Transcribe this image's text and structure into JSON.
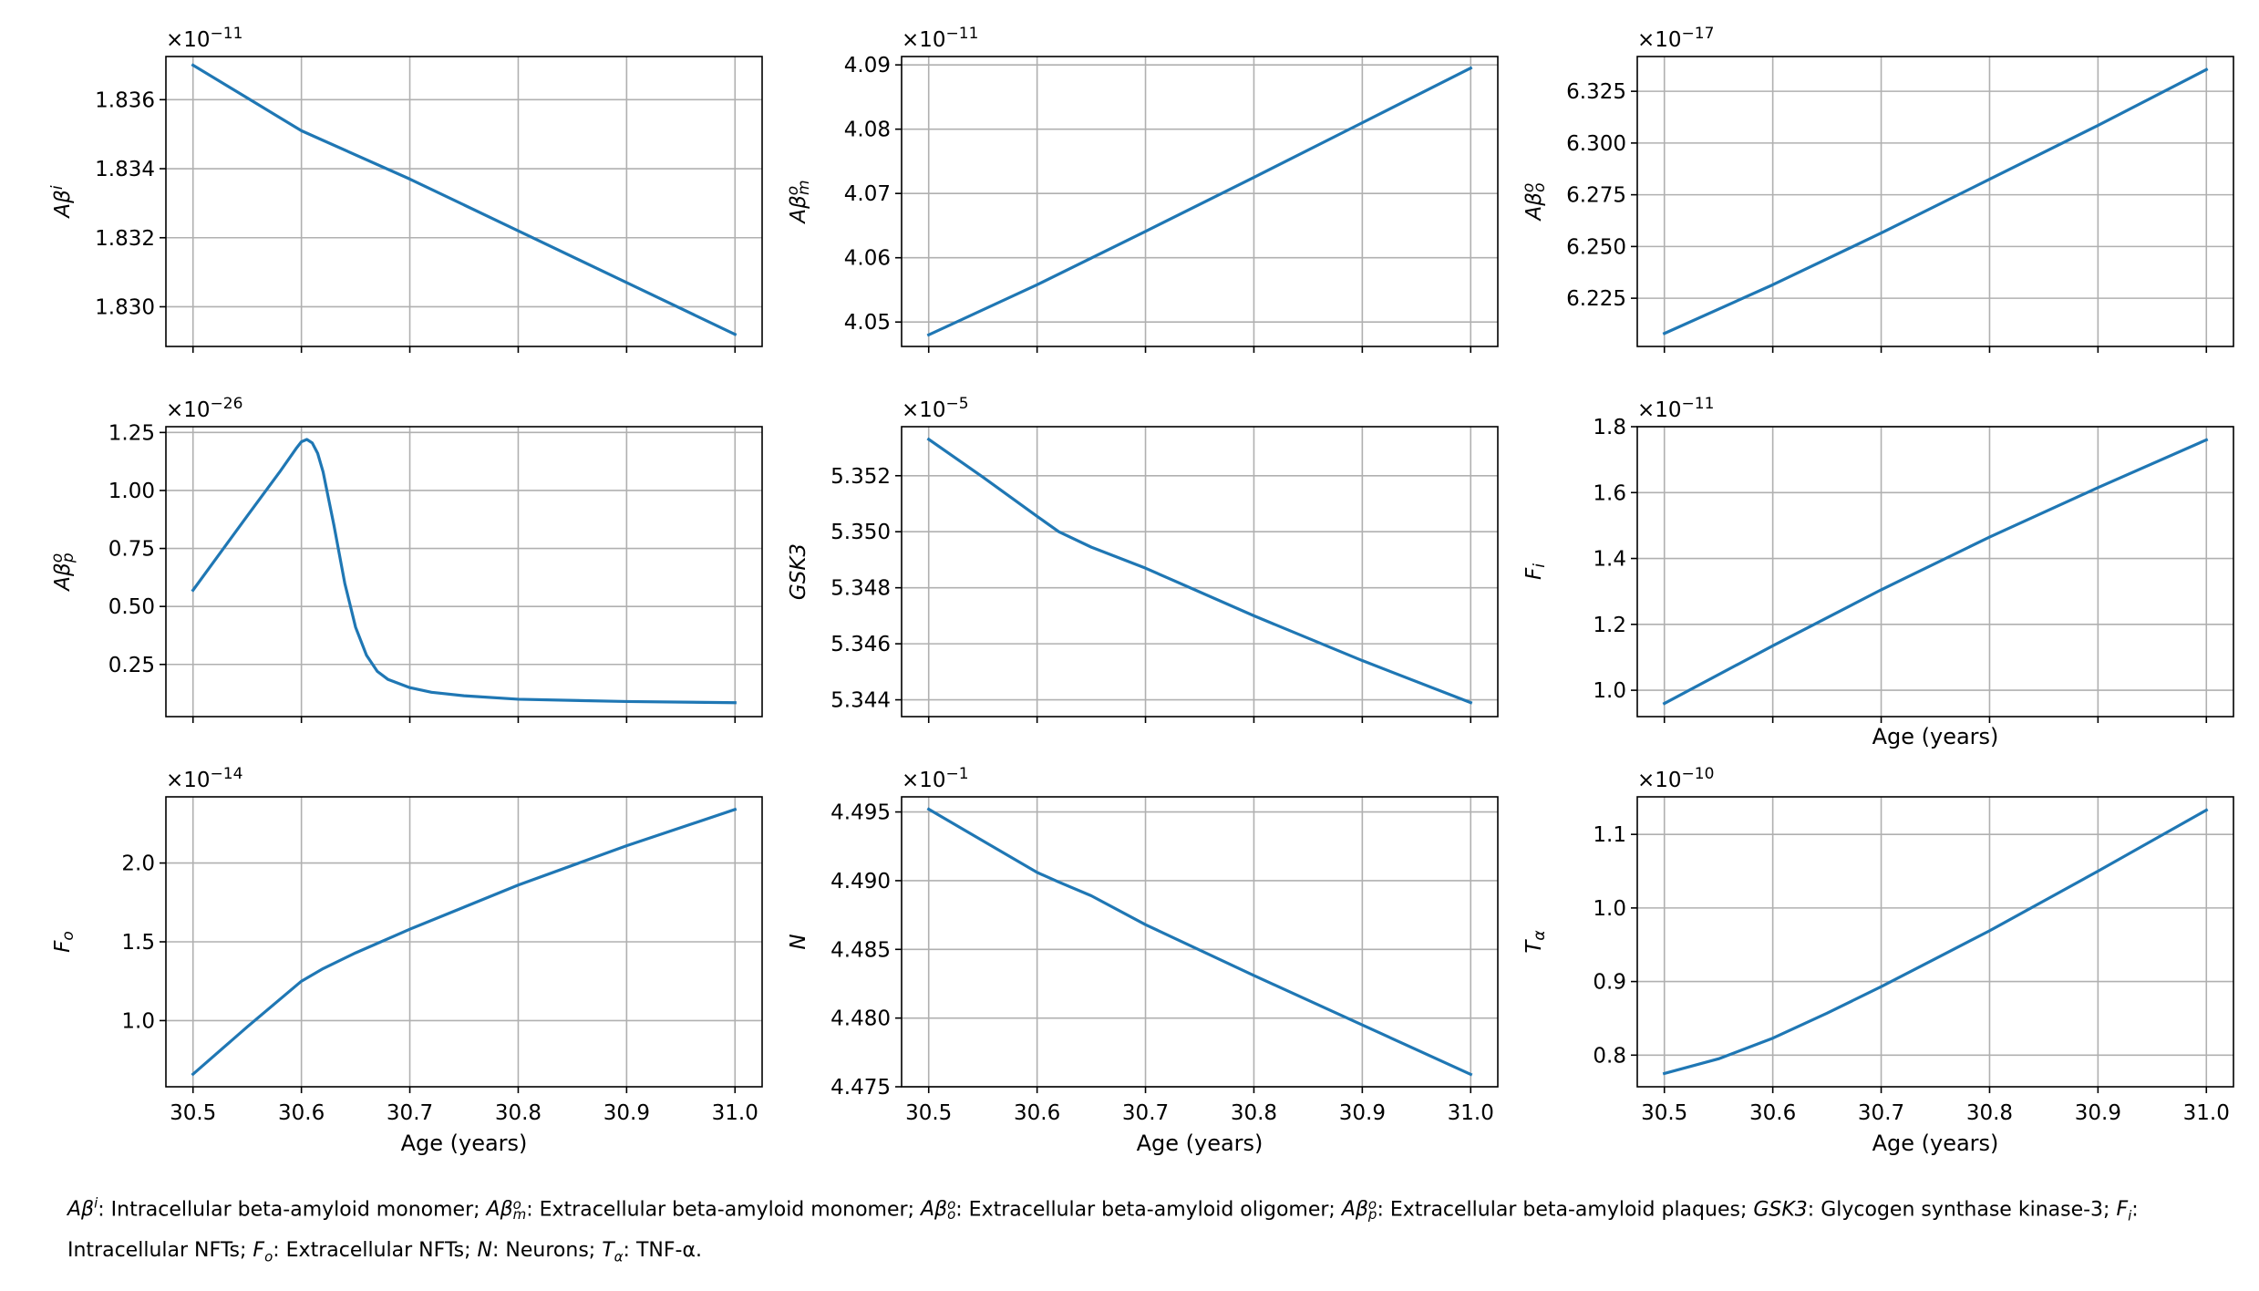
{
  "chart_data": [
    {
      "type": "line",
      "ylabel_tex": "Aβ^i",
      "multiplier_exp": "-11",
      "x": [
        30.5,
        30.55,
        30.6,
        30.62,
        30.7,
        30.8,
        30.9,
        31.0
      ],
      "y": [
        1.837,
        1.83605,
        1.8351,
        1.83482,
        1.8337,
        1.8322,
        1.8307,
        1.8292
      ],
      "xlim": [
        30.475,
        31.025
      ],
      "ylim": [
        1.82885,
        1.83725
      ],
      "yticks": [
        "1.830",
        "1.832",
        "1.834",
        "1.836"
      ],
      "xticklabels": false,
      "xlabel": "",
      "grid": true,
      "color": "#1f77b4"
    },
    {
      "type": "line",
      "ylabel_tex": "Aβ^o_m",
      "multiplier_exp": "-11",
      "x": [
        30.5,
        30.6,
        30.7,
        30.8,
        30.9,
        31.0
      ],
      "y": [
        4.048,
        4.0558,
        4.0641,
        4.0725,
        4.081,
        4.0895
      ],
      "xlim": [
        30.475,
        31.025
      ],
      "ylim": [
        4.0462,
        4.0913
      ],
      "yticks": [
        "4.05",
        "4.06",
        "4.07",
        "4.08",
        "4.09"
      ],
      "xticklabels": false,
      "xlabel": "",
      "grid": true,
      "color": "#1f77b4"
    },
    {
      "type": "line",
      "ylabel_tex": "Aβ^o_o",
      "multiplier_exp": "-17",
      "x": [
        30.5,
        30.6,
        30.7,
        30.8,
        30.9,
        31.0
      ],
      "y": [
        6.208,
        6.2315,
        6.2565,
        6.2825,
        6.3085,
        6.3355
      ],
      "xlim": [
        30.475,
        31.025
      ],
      "ylim": [
        6.2017,
        6.3418
      ],
      "yticks": [
        "6.225",
        "6.250",
        "6.275",
        "6.300",
        "6.325"
      ],
      "xticklabels": false,
      "xlabel": "",
      "grid": true,
      "color": "#1f77b4"
    },
    {
      "type": "line",
      "ylabel_tex": "Aβ^o_p",
      "multiplier_exp": "-26",
      "x": [
        30.5,
        30.55,
        30.58,
        30.595,
        30.6,
        30.605,
        30.61,
        30.615,
        30.62,
        30.63,
        30.64,
        30.65,
        30.66,
        30.67,
        30.68,
        30.7,
        30.72,
        30.75,
        30.8,
        30.9,
        31.0
      ],
      "y": [
        0.57,
        0.89,
        1.08,
        1.18,
        1.21,
        1.22,
        1.205,
        1.16,
        1.08,
        0.85,
        0.6,
        0.41,
        0.29,
        0.22,
        0.185,
        0.15,
        0.13,
        0.115,
        0.1,
        0.09,
        0.085
      ],
      "xlim": [
        30.475,
        31.025
      ],
      "ylim": [
        0.025,
        1.275
      ],
      "yticks": [
        "0.25",
        "0.50",
        "0.75",
        "1.00",
        "1.25"
      ],
      "xticklabels": false,
      "xlabel": "",
      "grid": true,
      "color": "#1f77b4"
    },
    {
      "type": "line",
      "ylabel_tex": "GSK3",
      "multiplier_exp": "-5",
      "x": [
        30.5,
        30.55,
        30.6,
        30.62,
        30.65,
        30.7,
        30.8,
        30.9,
        31.0
      ],
      "y": [
        5.3533,
        5.35195,
        5.35055,
        5.35,
        5.34945,
        5.3487,
        5.347,
        5.3454,
        5.3439
      ],
      "xlim": [
        30.475,
        31.025
      ],
      "ylim": [
        5.3434,
        5.35375
      ],
      "yticks": [
        "5.344",
        "5.346",
        "5.348",
        "5.350",
        "5.352"
      ],
      "xticklabels": false,
      "xlabel": "",
      "grid": true,
      "color": "#1f77b4"
    },
    {
      "type": "line",
      "ylabel_tex": "F_i",
      "multiplier_exp": "-11",
      "x": [
        30.5,
        30.6,
        30.7,
        30.8,
        30.9,
        31.0
      ],
      "y": [
        0.96,
        1.135,
        1.305,
        1.465,
        1.615,
        1.76
      ],
      "xlim": [
        30.475,
        31.025
      ],
      "ylim": [
        0.92,
        1.8
      ],
      "yticks": [
        "1.0",
        "1.2",
        "1.4",
        "1.6",
        "1.8"
      ],
      "xticklabels": false,
      "xlabel": "Age (years)",
      "grid": true,
      "color": "#1f77b4"
    },
    {
      "type": "line",
      "ylabel_tex": "F_o",
      "multiplier_exp": "-14",
      "x": [
        30.5,
        30.55,
        30.6,
        30.62,
        30.65,
        30.7,
        30.8,
        30.9,
        31.0
      ],
      "y": [
        0.66,
        0.96,
        1.25,
        1.33,
        1.43,
        1.58,
        1.86,
        2.11,
        2.34
      ],
      "xlim": [
        30.475,
        31.025
      ],
      "ylim": [
        0.58,
        2.42
      ],
      "yticks": [
        "1.0",
        "1.5",
        "2.0"
      ],
      "xticklabels": true,
      "xlabel": "Age (years)",
      "grid": true,
      "color": "#1f77b4"
    },
    {
      "type": "line",
      "ylabel_tex": "N",
      "multiplier_exp": "-1",
      "x": [
        30.5,
        30.55,
        30.6,
        30.62,
        30.65,
        30.7,
        30.8,
        30.9,
        31.0
      ],
      "y": [
        4.4952,
        4.4929,
        4.4906,
        4.4899,
        4.4889,
        4.4868,
        4.4831,
        4.4795,
        4.4759
      ],
      "xlim": [
        30.475,
        31.025
      ],
      "ylim": [
        4.475,
        4.4961
      ],
      "yticks": [
        "4.475",
        "4.480",
        "4.485",
        "4.490",
        "4.495"
      ],
      "xticklabels": true,
      "xlabel": "Age (years)",
      "grid": true,
      "color": "#1f77b4"
    },
    {
      "type": "line",
      "ylabel_tex": "T_α",
      "multiplier_exp": "-10",
      "x": [
        30.5,
        30.55,
        30.6,
        30.65,
        30.7,
        30.75,
        30.8,
        30.9,
        31.0
      ],
      "y": [
        0.775,
        0.795,
        0.823,
        0.857,
        0.893,
        0.931,
        0.969,
        1.05,
        1.133
      ],
      "xlim": [
        30.475,
        31.025
      ],
      "ylim": [
        0.757,
        1.151
      ],
      "yticks": [
        "0.8",
        "0.9",
        "1.0",
        "1.1"
      ],
      "xticklabels": true,
      "xlabel": "Age (years)",
      "grid": true,
      "color": "#1f77b4"
    }
  ],
  "xticks": [
    "30.5",
    "30.6",
    "30.7",
    "30.8",
    "30.9",
    "31.0"
  ],
  "caption": [
    {
      "sym": "Aβ^i",
      "text": ": Intracellular beta-amyloid monomer; "
    },
    {
      "sym": "Aβ^o_m",
      "text": ": Extracellular beta-amyloid monomer; "
    },
    {
      "sym": "Aβ^o_o",
      "text": ": Extracellular beta-amyloid oligomer; "
    },
    {
      "sym": "Aβ^o_p",
      "text": ": Extracellular beta-amyloid plaques; "
    },
    {
      "sym": "GSK3",
      "text": ": Glycogen synthase kinase-3; "
    },
    {
      "sym": "F_i",
      "text": ": Intracellular NFTs; "
    },
    {
      "sym": "F_o",
      "text": ": Extracellular NFTs; "
    },
    {
      "sym": "N",
      "text": ": Neurons; "
    },
    {
      "sym": "T_α",
      "text": ": TNF-α."
    }
  ]
}
